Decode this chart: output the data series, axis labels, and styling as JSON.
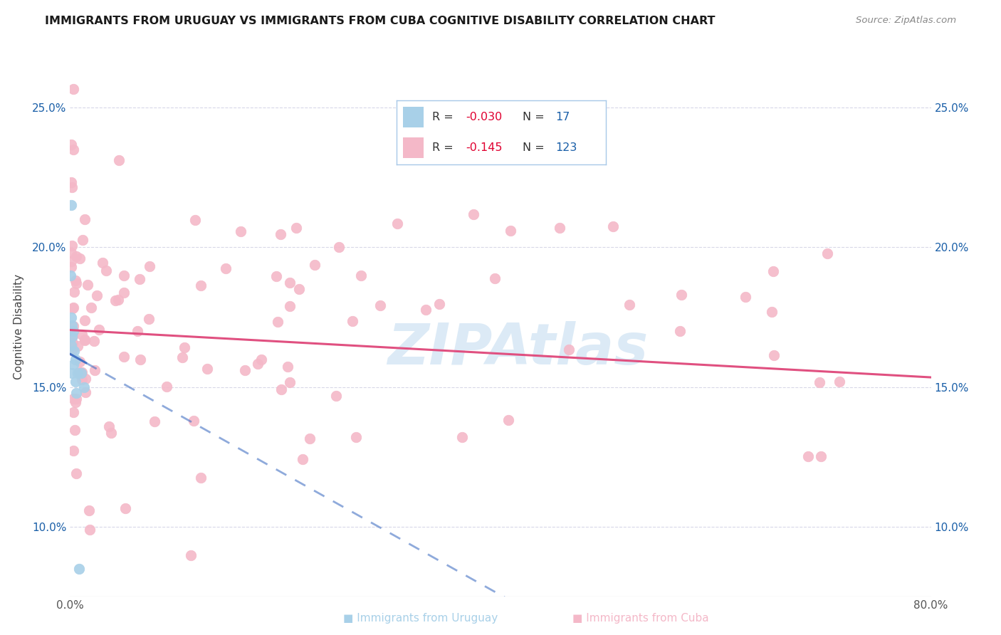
{
  "title": "IMMIGRANTS FROM URUGUAY VS IMMIGRANTS FROM CUBA COGNITIVE DISABILITY CORRELATION CHART",
  "source": "Source: ZipAtlas.com",
  "ylabel": "Cognitive Disability",
  "y_ticks": [
    0.1,
    0.15,
    0.2,
    0.25
  ],
  "xlim": [
    0.0,
    0.8
  ],
  "ylim": [
    0.075,
    0.268
  ],
  "uruguay_R": -0.03,
  "uruguay_N": 17,
  "cuba_R": -0.145,
  "cuba_N": 123,
  "uruguay_color": "#a8d0e8",
  "cuba_color": "#f4b8c8",
  "uruguay_line_color": "#4472c4",
  "cuba_line_color": "#e05080",
  "watermark_color": "#c5ddf0",
  "r_color": "#e00030",
  "n_color": "#1a5fa8",
  "legend_border_color": "#a8c8e8",
  "grid_color": "#d8d8e8",
  "bottom_line_color": "#b0b0b0"
}
